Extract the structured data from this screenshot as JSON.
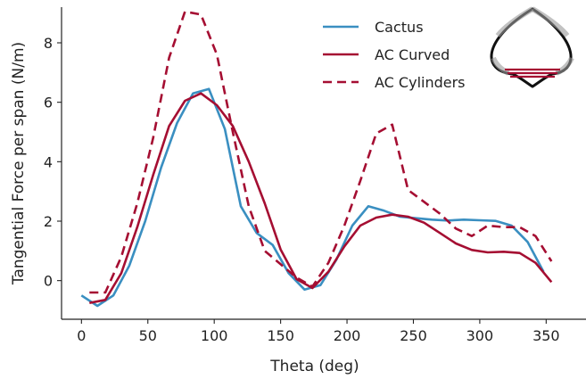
{
  "chart_data": {
    "type": "line",
    "xlabel": "Theta (deg)",
    "ylabel": "Tangential Force per span (N/m)",
    "xlim": [
      -15,
      380
    ],
    "ylim": [
      -1.3,
      9.2
    ],
    "xticks": [
      0,
      50,
      100,
      150,
      200,
      250,
      300,
      350
    ],
    "yticks": [
      0,
      2,
      4,
      6,
      8
    ],
    "grid": false,
    "legend_position": "top-right",
    "series": [
      {
        "name": "Cactus",
        "color": "#3a8fc1",
        "dash": "solid",
        "x": [
          0,
          12,
          24,
          36,
          48,
          60,
          72,
          84,
          96,
          108,
          120,
          132,
          144,
          156,
          168,
          180,
          192,
          204,
          216,
          228,
          240,
          252,
          264,
          276,
          288,
          300,
          312,
          324,
          336,
          348
        ],
        "y": [
          -0.5,
          -0.85,
          -0.5,
          0.5,
          2.0,
          3.8,
          5.3,
          6.3,
          6.45,
          5.1,
          2.5,
          1.6,
          1.2,
          0.25,
          -0.3,
          -0.15,
          0.7,
          1.85,
          2.5,
          2.35,
          2.15,
          2.1,
          2.05,
          2.02,
          2.05,
          2.03,
          2.01,
          1.85,
          1.3,
          0.3
        ]
      },
      {
        "name": "AC Curved",
        "color": "#a50e32",
        "dash": "solid",
        "x": [
          6,
          18,
          30,
          42,
          54,
          66,
          78,
          90,
          102,
          114,
          126,
          138,
          150,
          162,
          174,
          186,
          198,
          210,
          222,
          234,
          246,
          258,
          270,
          282,
          294,
          306,
          318,
          330,
          342,
          354
        ],
        "y": [
          -0.75,
          -0.65,
          0.25,
          1.8,
          3.55,
          5.2,
          6.05,
          6.3,
          5.9,
          5.2,
          4.0,
          2.6,
          1.05,
          0.05,
          -0.25,
          0.3,
          1.15,
          1.85,
          2.12,
          2.22,
          2.15,
          1.95,
          1.6,
          1.25,
          1.03,
          0.95,
          0.97,
          0.93,
          0.6,
          -0.05
        ]
      },
      {
        "name": "AC Cylinders",
        "color": "#a50e32",
        "dash": "dashed",
        "x": [
          6,
          18,
          30,
          42,
          54,
          66,
          78,
          90,
          102,
          114,
          126,
          138,
          150,
          162,
          174,
          186,
          198,
          210,
          222,
          234,
          246,
          258,
          270,
          282,
          294,
          306,
          318,
          330,
          342,
          354
        ],
        "y": [
          -0.4,
          -0.4,
          0.8,
          2.6,
          4.8,
          7.5,
          9.05,
          8.95,
          7.6,
          5.0,
          2.5,
          1.0,
          0.55,
          0.1,
          -0.2,
          0.6,
          1.85,
          3.35,
          4.95,
          5.25,
          3.05,
          2.65,
          2.25,
          1.75,
          1.5,
          1.85,
          1.8,
          1.8,
          1.5,
          0.65
        ]
      }
    ]
  }
}
